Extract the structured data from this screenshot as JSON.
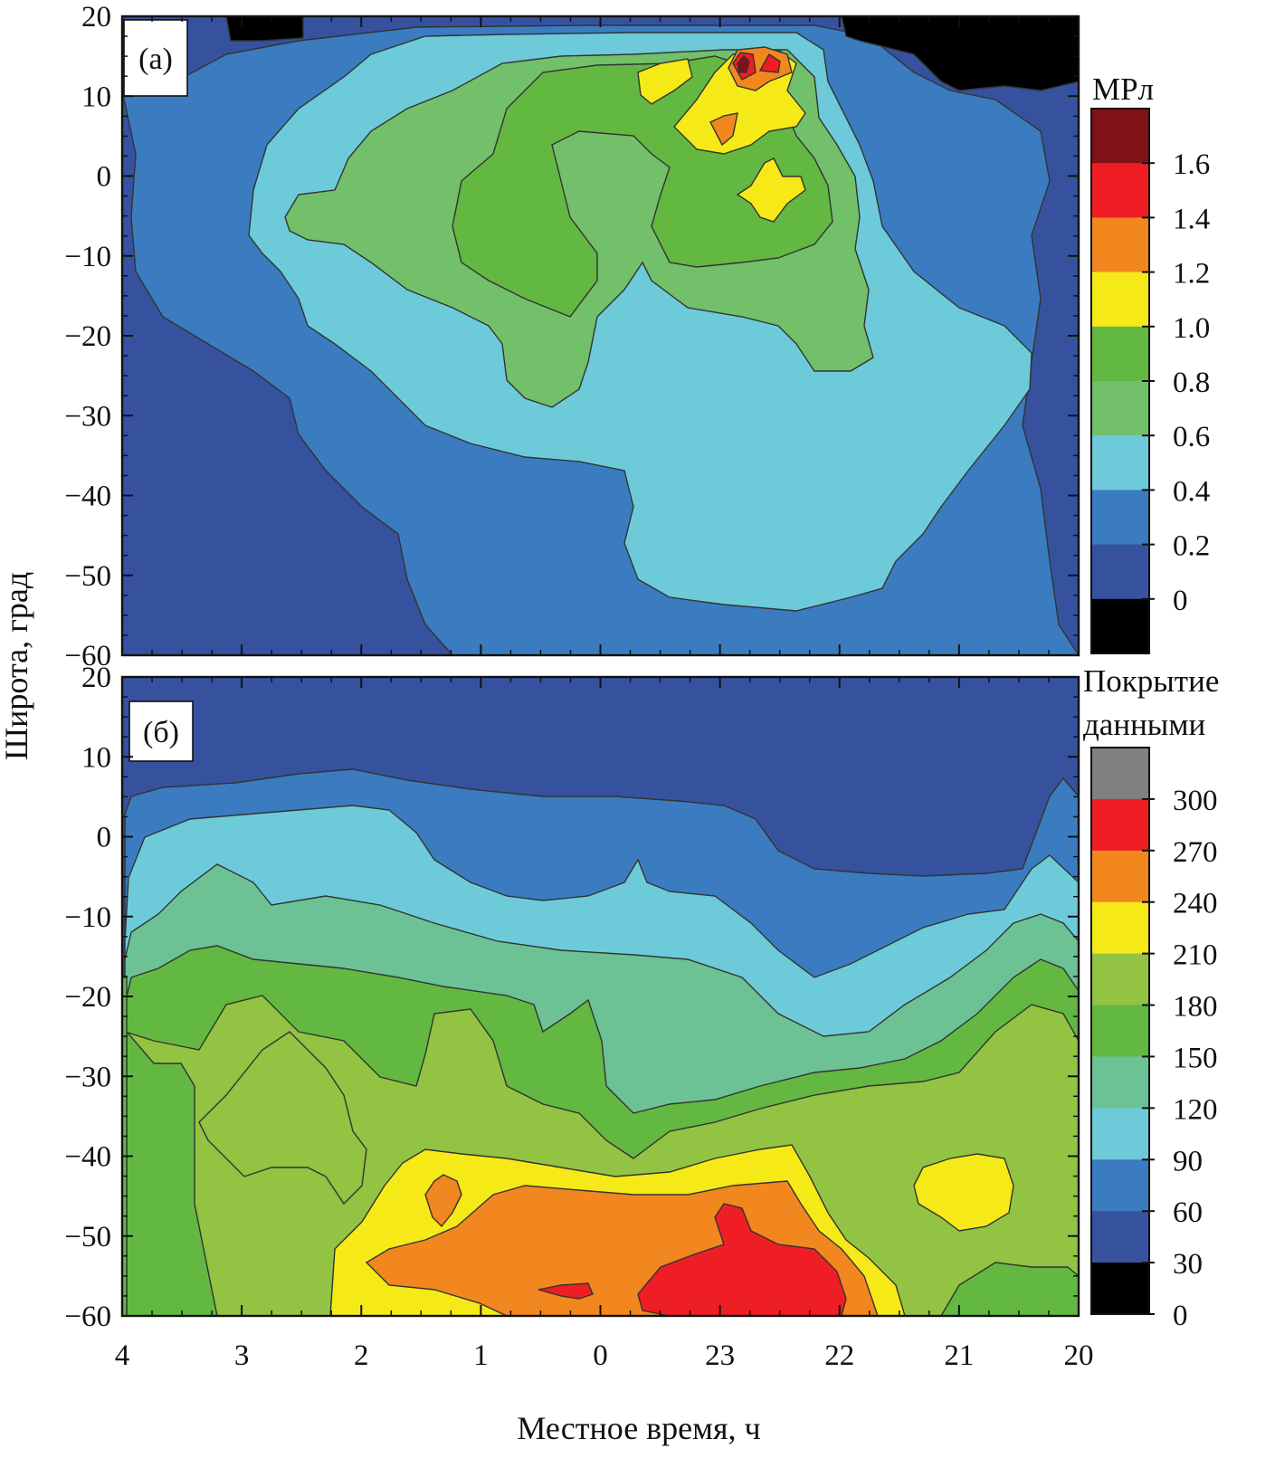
{
  "figure": {
    "y_axis_title": "Широта, град",
    "x_axis_title": "Местное время, ч",
    "x_ticks": [
      "4",
      "3",
      "2",
      "1",
      "0",
      "23",
      "22",
      "21",
      "20"
    ],
    "y_ticks": [
      "20",
      "10",
      "0",
      "−10",
      "−20",
      "−30",
      "−40",
      "−50",
      "−60"
    ]
  },
  "panel_a": {
    "tag": "(а)",
    "colorbar": {
      "title": "МРл",
      "labels": [
        "1.6",
        "1.4",
        "1.2",
        "1.0",
        "0.8",
        "0.6",
        "0.4",
        "0.2",
        "0"
      ],
      "colors": [
        "#7f1216",
        "#ee1e24",
        "#f2861f",
        "#f5ea18",
        "#63b842",
        "#72c06a",
        "#6dcbd9",
        "#3b7cc0",
        "#36529f",
        "#000000"
      ]
    }
  },
  "panel_b": {
    "tag": "(б)",
    "colorbar": {
      "title_line1": "Покрытие",
      "title_line2": "данными",
      "labels": [
        "300",
        "270",
        "240",
        "210",
        "180",
        "150",
        "120",
        "90",
        "60",
        "30",
        "0"
      ],
      "colors": [
        "#808080",
        "#ee1e24",
        "#f2861f",
        "#f5ea18",
        "#92c342",
        "#63b842",
        "#6cc294",
        "#6dcbd9",
        "#3b7cc0",
        "#36529f",
        "#000000"
      ]
    }
  },
  "chart_data": [
    {
      "type": "heatmap",
      "panel": "(а)",
      "colorbar_title": "МРл",
      "x_ticks": [
        "4",
        "3",
        "2",
        "1",
        "0",
        "23",
        "22",
        "21",
        "20"
      ],
      "xlabel": "Местное время, ч",
      "ylabel": "Широта, град",
      "ylim": [
        -60,
        20
      ],
      "levels": [
        0,
        0.2,
        0.4,
        0.6,
        0.8,
        1.0,
        1.2,
        1.4,
        1.6
      ],
      "features": [
        {
          "region": "background",
          "value_range": [
            0.2,
            0.4
          ]
        },
        {
          "region": "west edge and south-west corner",
          "value_range": [
            0,
            0.2
          ]
        },
        {
          "region": "central region, latitude -55..15, local time 3..20.5",
          "value_range": [
            0.4,
            0.6
          ]
        },
        {
          "region": "local time 2..21, latitude -30..15",
          "value_range": [
            0.6,
            1.0
          ]
        },
        {
          "region": "maximum near local time 23, latitude 12",
          "value_range": [
            1.4,
            1.8
          ]
        }
      ]
    },
    {
      "type": "heatmap",
      "panel": "(б)",
      "colorbar_title": "Покрытие данными",
      "x_ticks": [
        "4",
        "3",
        "2",
        "1",
        "0",
        "23",
        "22",
        "21",
        "20"
      ],
      "xlabel": "Местное время, ч",
      "ylabel": "Широта, град",
      "ylim": [
        -60,
        20
      ],
      "levels": [
        0,
        30,
        60,
        90,
        120,
        150,
        180,
        210,
        240,
        270,
        300
      ],
      "features": [
        {
          "region": "north of 5°",
          "value_range": [
            0,
            30
          ]
        },
        {
          "region": "latitude 0..5",
          "value_range": [
            30,
            60
          ]
        },
        {
          "region": "latitude -5..-25",
          "value_range": [
            60,
            150
          ]
        },
        {
          "region": "latitude -25..-40",
          "value_range": [
            150,
            210
          ]
        },
        {
          "region": "local time 1..22, latitude -45..-60",
          "value_range": [
            210,
            300
          ]
        },
        {
          "region": "local time 21, latitude -45",
          "value_range": [
            210,
            240
          ]
        }
      ]
    }
  ]
}
